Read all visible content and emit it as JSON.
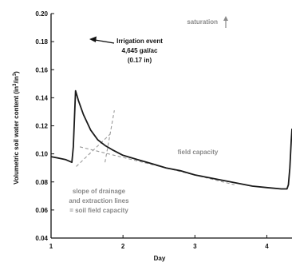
{
  "chart_data": {
    "type": "line",
    "title": "",
    "xlabel": "Day",
    "ylabel": "Volumetric soil water content (in³/in³)",
    "ylabel_main": "Volumetric soil water content (in",
    "ylabel_sup1": "3",
    "ylabel_mid": "/in",
    "ylabel_sup2": "3",
    "ylabel_end": ")",
    "xlim": [
      1,
      4.35
    ],
    "ylim": [
      0.04,
      0.2
    ],
    "x_ticks": [
      1,
      2,
      3,
      4
    ],
    "x_tick_labels": [
      "1",
      "2",
      "3",
      "4"
    ],
    "y_ticks": [
      0.04,
      0.06,
      0.08,
      0.1,
      0.12,
      0.14,
      0.16,
      0.18,
      0.2
    ],
    "y_tick_labels": [
      "0.04",
      "0.06",
      "0.08",
      "0.10",
      "0.12",
      "0.14",
      "0.16",
      "0.18",
      "0.20"
    ],
    "grid": false,
    "series": [
      {
        "color": "#1a1a1a",
        "points": [
          [
            1.0,
            0.098
          ],
          [
            1.1,
            0.097
          ],
          [
            1.2,
            0.096
          ],
          [
            1.29,
            0.094
          ],
          [
            1.31,
            0.105
          ],
          [
            1.34,
            0.145
          ],
          [
            1.38,
            0.138
          ],
          [
            1.45,
            0.128
          ],
          [
            1.55,
            0.117
          ],
          [
            1.65,
            0.11
          ],
          [
            1.75,
            0.106
          ],
          [
            1.85,
            0.103
          ],
          [
            2.0,
            0.099
          ],
          [
            2.2,
            0.096
          ],
          [
            2.4,
            0.093
          ],
          [
            2.6,
            0.09
          ],
          [
            2.8,
            0.088
          ],
          [
            3.0,
            0.085
          ],
          [
            3.2,
            0.083
          ],
          [
            3.4,
            0.081
          ],
          [
            3.6,
            0.079
          ],
          [
            3.8,
            0.077
          ],
          [
            4.0,
            0.076
          ],
          [
            4.2,
            0.075
          ],
          [
            4.28,
            0.075
          ],
          [
            4.3,
            0.078
          ],
          [
            4.32,
            0.09
          ],
          [
            4.34,
            0.11
          ],
          [
            4.35,
            0.118
          ]
        ]
      }
    ],
    "reference_lines": [
      {
        "style": "dashed",
        "color": "#9a9a9a",
        "from": [
          1.4,
          0.105
        ],
        "to": [
          3.55,
          0.078
        ]
      },
      {
        "style": "dashed",
        "color": "#9a9a9a",
        "from": [
          1.35,
          0.091
        ],
        "to": [
          1.82,
          0.114
        ]
      },
      {
        "style": "dashed",
        "color": "#9a9a9a",
        "from": [
          1.75,
          0.094
        ],
        "to": [
          1.88,
          0.131
        ]
      }
    ],
    "annotations": {
      "irrigation_line1": "Irrigation event",
      "irrigation_line2": "4,645 gal/ac",
      "irrigation_line3": "(0.17 in)",
      "saturation": "saturation",
      "field_capacity": "field capacity",
      "slope_line1": "slope of drainage",
      "slope_line2": "and extraction lines",
      "slope_line3": "= soil field capacity"
    },
    "colors": {
      "axis": "#111111",
      "series": "#1a1a1a",
      "annotation_gray": "#8a8a8a"
    }
  }
}
